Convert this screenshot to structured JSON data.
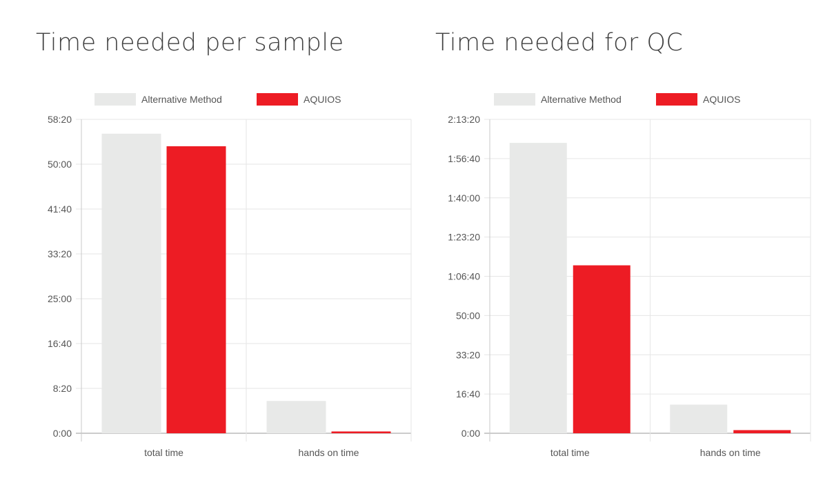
{
  "panels": [
    {
      "title": "Time needed per sample",
      "chart_data": {
        "type": "bar",
        "categories": [
          "total time",
          "hands on time"
        ],
        "series": [
          {
            "name": "Alternative Method",
            "values": [
              3340,
              360
            ]
          },
          {
            "name": "AQUIOS",
            "values": [
              3200,
              20
            ]
          }
        ],
        "value_unit": "seconds (axis labels shown as m:ss)",
        "ylim": [
          0,
          3500
        ],
        "yticks": [
          0,
          500,
          1000,
          1500,
          2000,
          2500,
          3000,
          3500
        ],
        "ytick_labels": [
          "0:00",
          "8:20",
          "16:40",
          "25:00",
          "33:20",
          "41:40",
          "50:00",
          "58:20"
        ],
        "grid": true,
        "legend": "top-center",
        "colors": {
          "Alternative Method": "#e8e9e8",
          "AQUIOS": "#ed1c24"
        }
      }
    },
    {
      "title": "Time needed for QC",
      "chart_data": {
        "type": "bar",
        "categories": [
          "total time",
          "hands on time"
        ],
        "series": [
          {
            "name": "Alternative Method",
            "values": [
              7400,
              730
            ]
          },
          {
            "name": "AQUIOS",
            "values": [
              4280,
              80
            ]
          }
        ],
        "value_unit": "seconds (axis labels shown as h:mm:ss / mm:ss)",
        "ylim": [
          0,
          8000
        ],
        "yticks": [
          0,
          1000,
          2000,
          3000,
          4000,
          5000,
          6000,
          7000,
          8000
        ],
        "ytick_labels": [
          "0:00",
          "16:40",
          "33:20",
          "50:00",
          "1:06:40",
          "1:23:20",
          "1:40:00",
          "1:56:40",
          "2:13:20"
        ],
        "grid": true,
        "legend": "top-center",
        "colors": {
          "Alternative Method": "#e8e9e8",
          "AQUIOS": "#ed1c24"
        }
      }
    }
  ]
}
